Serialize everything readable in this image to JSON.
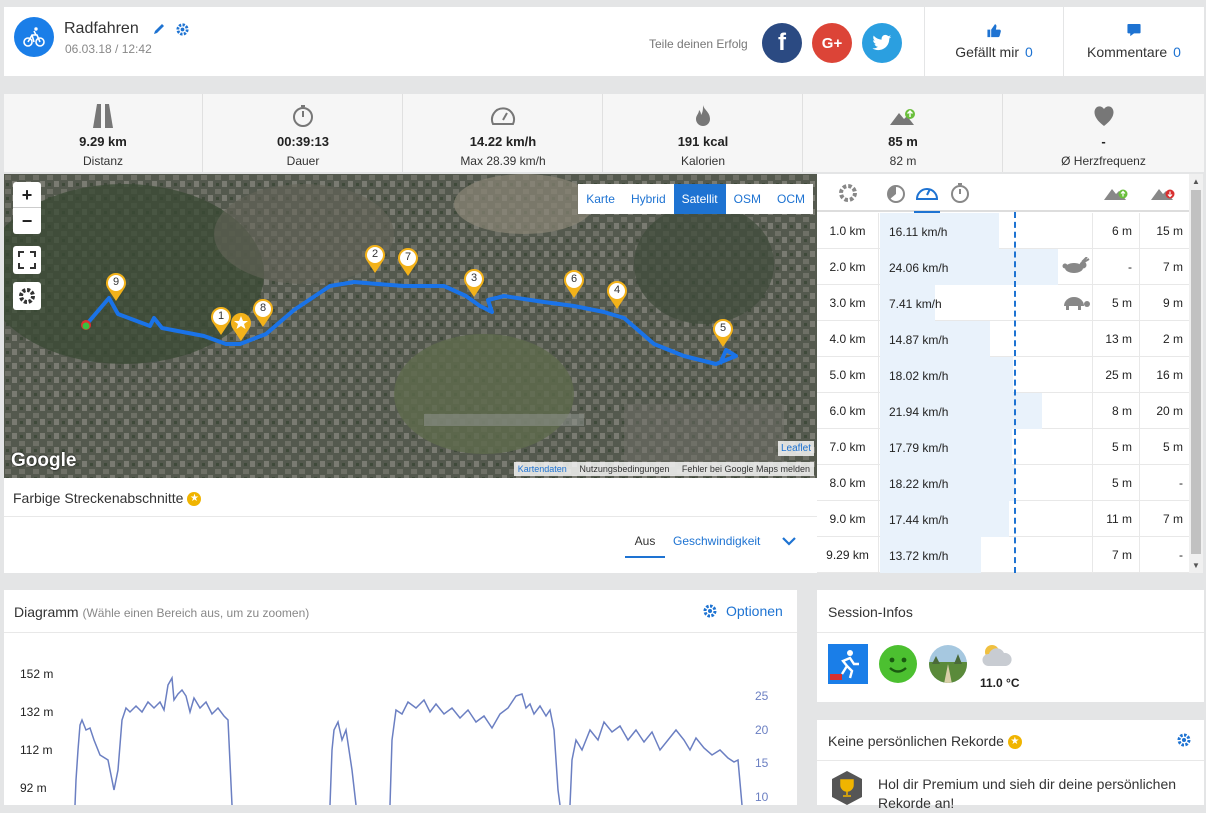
{
  "header": {
    "title": "Radfahren",
    "date": "06.03.18 / 12:42",
    "share_label": "Teile deinen Erfolg",
    "like_label": "Gefällt mir",
    "like_count": "0",
    "comment_label": "Kommentare",
    "comment_count": "0",
    "facebook": "f",
    "googleplus": "G+"
  },
  "stats": [
    {
      "value": "9.29 km",
      "label": "Distanz",
      "icon": "road-icon"
    },
    {
      "value": "00:39:13",
      "label": "Dauer",
      "icon": "stopwatch-icon"
    },
    {
      "value": "14.22 km/h",
      "label": "Max 28.39 km/h",
      "icon": "speedometer-icon"
    },
    {
      "value": "191 kcal",
      "label": "Kalorien",
      "icon": "flame-icon"
    },
    {
      "value": "85 m",
      "label": "82 m",
      "icon": "elevation-up-down-icon"
    },
    {
      "value": "-",
      "label": "Ø Herzfrequenz",
      "icon": "heart-icon"
    }
  ],
  "map": {
    "layers": [
      "Karte",
      "Hybrid",
      "Satellit",
      "OSM",
      "OCM"
    ],
    "active_layer": "Satellit",
    "zoom_in": "+",
    "zoom_out": "−",
    "google_logo": "Google",
    "leaflet": "Leaflet",
    "attrib": [
      "Kartendaten",
      "Nutzungsbedingungen",
      "Fehler bei Google Maps melden"
    ],
    "markers": [
      "1",
      "2",
      "3",
      "4",
      "5",
      "6",
      "7",
      "8",
      "9"
    ],
    "route_color": "#1a73e8"
  },
  "segments": {
    "title": "Farbige Streckenabschnitte",
    "option_off": "Aus",
    "option_speed": "Geschwindigkeit"
  },
  "splits": {
    "rows": [
      {
        "km": "1.0 km",
        "speed": "16.11 km/h",
        "speed_value": 16.11,
        "up": "6 m",
        "down": "15 m",
        "animal": ""
      },
      {
        "km": "2.0 km",
        "speed": "24.06 km/h",
        "speed_value": 24.06,
        "up": "-",
        "down": "7 m",
        "animal": "rabbit"
      },
      {
        "km": "3.0 km",
        "speed": "7.41 km/h",
        "speed_value": 7.41,
        "up": "5 m",
        "down": "9 m",
        "animal": "turtle"
      },
      {
        "km": "4.0 km",
        "speed": "14.87 km/h",
        "speed_value": 14.87,
        "up": "13 m",
        "down": "2 m",
        "animal": ""
      },
      {
        "km": "5.0 km",
        "speed": "18.02 km/h",
        "speed_value": 18.02,
        "up": "25 m",
        "down": "16 m",
        "animal": ""
      },
      {
        "km": "6.0 km",
        "speed": "21.94 km/h",
        "speed_value": 21.94,
        "up": "8 m",
        "down": "20 m",
        "animal": ""
      },
      {
        "km": "7.0 km",
        "speed": "17.79 km/h",
        "speed_value": 17.79,
        "up": "5 m",
        "down": "5 m",
        "animal": ""
      },
      {
        "km": "8.0 km",
        "speed": "18.22 km/h",
        "speed_value": 18.22,
        "up": "5 m",
        "down": "-",
        "animal": ""
      },
      {
        "km": "9.0 km",
        "speed": "17.44 km/h",
        "speed_value": 17.44,
        "up": "11 m",
        "down": "7 m",
        "animal": ""
      },
      {
        "km": "9.29 km",
        "speed": "13.72 km/h",
        "speed_value": 13.72,
        "up": "7 m",
        "down": "-",
        "animal": ""
      }
    ]
  },
  "diagram": {
    "title": "Diagramm",
    "hint": "(Wähle einen Bereich aus, um zu zoomen)",
    "options": "Optionen",
    "y_left": [
      "152 m",
      "132 m",
      "112 m",
      "92 m"
    ],
    "y_right": [
      "25",
      "20",
      "15",
      "10"
    ]
  },
  "session": {
    "title": "Session-Infos",
    "temperature": "11.0 °C"
  },
  "records": {
    "title": "Keine persönlichen Rekorde",
    "text": "Hol dir Premium und sieh dir deine persönlichen Rekorde an!"
  }
}
